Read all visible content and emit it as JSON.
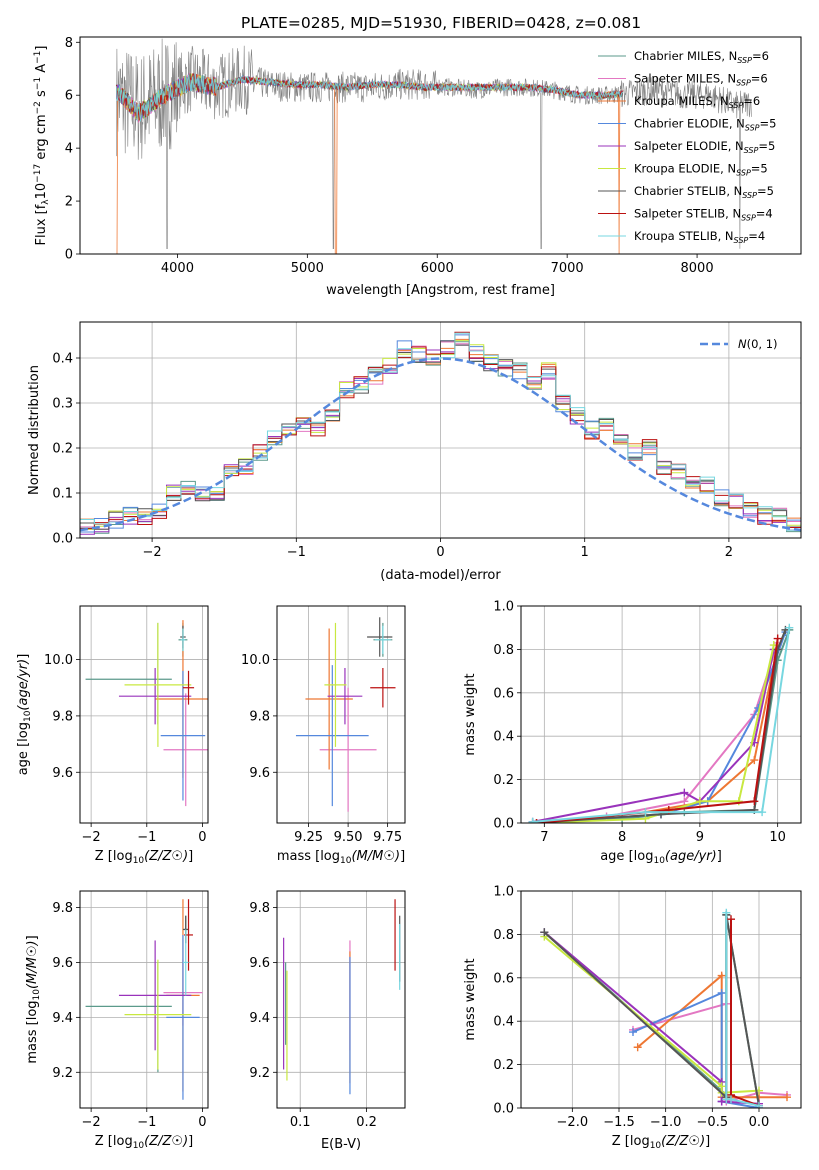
{
  "title": "PLATE=0285, MJD=51930, FIBERID=0428, z=0.081",
  "models": [
    {
      "name": "Chabrier MILES, N_SSP=6",
      "label_main": "Chabrier MILES, N",
      "label_sub": "SSP",
      "label_tail": "=6",
      "color": "#5b9a8b"
    },
    {
      "name": "Salpeter MILES, N_SSP=6",
      "label_main": "Salpeter MILES, N",
      "label_sub": "SSP",
      "label_tail": "=6",
      "color": "#e377c2"
    },
    {
      "name": "Kroupa MILES, N_SSP=6",
      "label_main": "Kroupa MILES, N",
      "label_sub": "SSP",
      "label_tail": "=6",
      "color": "#ee7733"
    },
    {
      "name": "Chabrier ELODIE, N_SSP=5",
      "label_main": "Chabrier ELODIE, N",
      "label_sub": "SSP",
      "label_tail": "=5",
      "color": "#5588dd"
    },
    {
      "name": "Salpeter ELODIE, N_SSP=5",
      "label_main": "Salpeter ELODIE, N",
      "label_sub": "SSP",
      "label_tail": "=5",
      "color": "#9933bb"
    },
    {
      "name": "Kroupa ELODIE, N_SSP=5",
      "label_main": "Kroupa ELODIE, N",
      "label_sub": "SSP",
      "label_tail": "=5",
      "color": "#c8e840"
    },
    {
      "name": "Chabrier STELIB, N_SSP=5",
      "label_main": "Chabrier STELIB, N",
      "label_sub": "SSP",
      "label_tail": "=5",
      "color": "#555555"
    },
    {
      "name": "Salpeter STELIB, N_SSP=4",
      "label_main": "Salpeter STELIB, N",
      "label_sub": "SSP",
      "label_tail": "=4",
      "color": "#bb1111"
    },
    {
      "name": "Kroupa STELIB, N_SSP=4",
      "label_main": "Kroupa STELIB, N",
      "label_sub": "SSP",
      "label_tail": "=4",
      "color": "#77d7e0"
    }
  ],
  "chart_data": [
    {
      "id": "spectrum",
      "type": "line",
      "xlabel": "wavelength [Angstrom, rest frame]",
      "ylabel": "Flux [f_λ 10^-17 erg cm^-2 s^-1 A^-1]",
      "xlim": [
        3250,
        8800
      ],
      "ylim": [
        0,
        8.2
      ],
      "xticks": [
        4000,
        5000,
        6000,
        7000,
        8000
      ],
      "yticks": [
        0,
        2,
        4,
        6,
        8
      ],
      "grid": false,
      "legend": "upper right",
      "data_envelope": {
        "x": [
          3550,
          3700,
          3900,
          4100,
          4300,
          4500,
          4700,
          4900,
          5100,
          5300,
          5500,
          5700,
          5900,
          6100,
          6300,
          6500,
          6700,
          6900,
          7100,
          7300,
          7500,
          7700,
          7900,
          8100,
          8300,
          8500
        ],
        "y": [
          5.9,
          5.5,
          6.0,
          6.6,
          6.3,
          6.6,
          6.4,
          6.3,
          6.3,
          6.3,
          6.3,
          6.4,
          6.4,
          6.3,
          6.2,
          6.3,
          6.3,
          6.2,
          6.0,
          6.0,
          6.1,
          6.2,
          6.0,
          6.0,
          5.6,
          5.8
        ]
      },
      "model_envelope": {
        "x": [
          3550,
          3700,
          3900,
          4100,
          4300,
          4500,
          4700,
          4900,
          5100,
          5300,
          5500,
          5700,
          5900,
          6100,
          6300,
          6500,
          6700,
          6900,
          7100,
          7300,
          7500
        ],
        "y": [
          6.1,
          5.3,
          6.0,
          6.5,
          6.3,
          6.6,
          6.5,
          6.4,
          6.4,
          6.3,
          6.4,
          6.4,
          6.3,
          6.3,
          6.3,
          6.3,
          6.3,
          6.2,
          6.0,
          6.0,
          6.1
        ]
      }
    },
    {
      "id": "residuals",
      "type": "histogram",
      "xlabel": "(data-model)/error",
      "ylabel": "Normed distribution",
      "xlim": [
        -2.5,
        2.5
      ],
      "ylim": [
        0,
        0.48
      ],
      "xticks": [
        -2,
        -1,
        0,
        1,
        2
      ],
      "yticks": [
        0.0,
        0.1,
        0.2,
        0.3,
        0.4
      ],
      "grid": true,
      "legend": "upper right",
      "reference_curve": {
        "name": "N(0,1)",
        "type": "normal",
        "mean": 0,
        "sigma": 1,
        "style": "dashed",
        "color": "#5588dd"
      },
      "bin_width": 0.1,
      "bin_start": -2.5,
      "heights": [
        0.025,
        0.03,
        0.04,
        0.05,
        0.045,
        0.06,
        0.1,
        0.11,
        0.1,
        0.1,
        0.15,
        0.16,
        0.19,
        0.22,
        0.24,
        0.25,
        0.24,
        0.27,
        0.33,
        0.34,
        0.36,
        0.38,
        0.42,
        0.41,
        0.4,
        0.42,
        0.44,
        0.41,
        0.39,
        0.38,
        0.37,
        0.34,
        0.37,
        0.3,
        0.27,
        0.24,
        0.25,
        0.22,
        0.19,
        0.2,
        0.16,
        0.15,
        0.13,
        0.12,
        0.09,
        0.08,
        0.06,
        0.05,
        0.05,
        0.03
      ]
    },
    {
      "id": "age_vs_Z",
      "type": "errorbar",
      "xlabel": "Z [log10(Z/Z☉)]",
      "ylabel": "age [log10(age/yr)]",
      "xlim": [
        -2.2,
        0.1
      ],
      "ylim": [
        9.42,
        10.19
      ],
      "xticks": [
        -2,
        -1,
        0
      ],
      "yticks": [
        9.6,
        9.8,
        10.0
      ],
      "grid": true,
      "points": [
        {
          "x": -0.35,
          "y": 10.07,
          "xerr": 0.08,
          "yerr": 0.06,
          "model": 0
        },
        {
          "x": -0.3,
          "y": 9.68,
          "xerr": 0.4,
          "yerr": 0.2,
          "model": 1
        },
        {
          "x": -0.35,
          "y": 9.86,
          "xerr": 0.5,
          "yerr": 0.28,
          "model": 2
        },
        {
          "x": -0.35,
          "y": 9.73,
          "xerr": 0.4,
          "yerr": 0.23,
          "model": 3
        },
        {
          "x": -0.85,
          "y": 9.87,
          "xerr": 0.65,
          "yerr": 0.1,
          "model": 4
        },
        {
          "x": -0.8,
          "y": 9.91,
          "xerr": 0.6,
          "yerr": 0.22,
          "model": 5
        },
        {
          "x": -0.35,
          "y": 10.08,
          "xerr": 0.05,
          "yerr": 0.04,
          "model": 6
        },
        {
          "x": -0.25,
          "y": 9.9,
          "xerr": 0.1,
          "yerr": 0.06,
          "model": 7
        },
        {
          "x": -0.35,
          "y": 10.07,
          "xerr": 0.04,
          "yerr": 0.04,
          "model": 8
        }
      ],
      "extra_bar": {
        "x": -0.8,
        "y": 9.93,
        "x0": -2.1,
        "x1": -0.55,
        "y0": 9.77,
        "y1": 10.13,
        "model": 0
      }
    },
    {
      "id": "age_vs_mass",
      "type": "errorbar",
      "xlabel": "mass [log10(M/M☉)]",
      "ylabel": "",
      "xlim": [
        9.05,
        9.86
      ],
      "ylim": [
        9.42,
        10.19
      ],
      "xticks": [
        9.25,
        9.5,
        9.75
      ],
      "yticks": [
        9.6,
        9.8,
        10.0
      ],
      "grid": true,
      "points": [
        {
          "x": 9.72,
          "y": 10.07,
          "xerr": 0.06,
          "yerr": 0.06,
          "model": 0
        },
        {
          "x": 9.5,
          "y": 9.68,
          "xerr": 0.18,
          "yerr": 0.22,
          "model": 1
        },
        {
          "x": 9.38,
          "y": 9.86,
          "xerr": 0.15,
          "yerr": 0.25,
          "model": 2
        },
        {
          "x": 9.4,
          "y": 9.73,
          "xerr": 0.23,
          "yerr": 0.25,
          "model": 3
        },
        {
          "x": 9.48,
          "y": 9.87,
          "xerr": 0.11,
          "yerr": 0.1,
          "model": 4
        },
        {
          "x": 9.42,
          "y": 9.91,
          "xerr": 0.07,
          "yerr": 0.22,
          "model": 5
        },
        {
          "x": 9.7,
          "y": 10.08,
          "xerr": 0.08,
          "yerr": 0.07,
          "model": 6
        },
        {
          "x": 9.72,
          "y": 9.9,
          "xerr": 0.08,
          "yerr": 0.07,
          "model": 7
        },
        {
          "x": 9.72,
          "y": 10.07,
          "xerr": 0.05,
          "yerr": 0.05,
          "model": 8
        }
      ]
    },
    {
      "id": "weight_vs_age",
      "type": "line",
      "xlabel": "age [log10(age/yr)]",
      "ylabel": "mass weight",
      "xlim": [
        6.7,
        10.3
      ],
      "ylim": [
        0,
        1.0
      ],
      "xticks": [
        7,
        8,
        9,
        10
      ],
      "yticks": [
        0.0,
        0.2,
        0.4,
        0.6,
        0.8,
        1.0
      ],
      "grid": true,
      "series": [
        {
          "model": 0,
          "x": [
            6.85,
            8.0,
            8.8,
            9.7,
            10.0,
            10.15
          ],
          "y": [
            0.005,
            0.02,
            0.05,
            0.06,
            0.75,
            0.89
          ]
        },
        {
          "model": 1,
          "x": [
            6.9,
            7.8,
            8.8,
            9.7,
            10.0
          ],
          "y": [
            0.0,
            0.03,
            0.1,
            0.5,
            0.83
          ]
        },
        {
          "model": 2,
          "x": [
            6.85,
            8.3,
            9.1,
            9.7,
            10.0
          ],
          "y": [
            0.0,
            0.05,
            0.1,
            0.29,
            0.82
          ]
        },
        {
          "model": 3,
          "x": [
            6.9,
            8.5,
            9.1,
            9.75,
            10.1
          ],
          "y": [
            0.0,
            0.04,
            0.1,
            0.53,
            0.88
          ]
        },
        {
          "model": 4,
          "x": [
            6.85,
            8.8,
            9.0,
            9.7,
            9.95
          ],
          "y": [
            0.005,
            0.14,
            0.1,
            0.37,
            0.8
          ]
        },
        {
          "model": 5,
          "x": [
            6.9,
            8.3,
            9.0,
            9.5,
            9.95
          ],
          "y": [
            0.0,
            0.02,
            0.1,
            0.1,
            0.82
          ]
        },
        {
          "model": 6,
          "x": [
            6.85,
            8.5,
            9.7,
            10.0,
            10.1
          ],
          "y": [
            0.0,
            0.04,
            0.06,
            0.8,
            0.89
          ]
        },
        {
          "model": 7,
          "x": [
            6.9,
            8.6,
            9.7,
            10.0
          ],
          "y": [
            0.0,
            0.06,
            0.1,
            0.85
          ]
        },
        {
          "model": 8,
          "x": [
            6.85,
            8.3,
            9.8,
            10.15
          ],
          "y": [
            0.005,
            0.05,
            0.05,
            0.9
          ]
        }
      ]
    },
    {
      "id": "mass_vs_Z",
      "type": "errorbar",
      "xlabel": "Z [log10(Z/Z☉)]",
      "ylabel": "mass [log10(M/M☉)]",
      "xlim": [
        -2.2,
        0.1
      ],
      "ylim": [
        9.07,
        9.86
      ],
      "xticks": [
        -2,
        -1,
        0
      ],
      "yticks": [
        9.2,
        9.4,
        9.6,
        9.8
      ],
      "grid": true,
      "points": [
        {
          "x": -0.3,
          "y": 9.72,
          "xerr": 0.05,
          "yerr": 0.05,
          "model": 0
        },
        {
          "x": -0.35,
          "y": 9.49,
          "xerr": 0.35,
          "yerr": 0.12,
          "model": 1
        },
        {
          "x": -0.35,
          "y": 9.48,
          "xerr": 0.3,
          "yerr": 0.35,
          "model": 2
        },
        {
          "x": -0.35,
          "y": 9.4,
          "xerr": 0.3,
          "yerr": 0.3,
          "model": 3
        },
        {
          "x": -0.85,
          "y": 9.48,
          "xerr": 0.65,
          "yerr": 0.2,
          "model": 4
        },
        {
          "x": -0.8,
          "y": 9.41,
          "xerr": 0.6,
          "yerr": 0.2,
          "model": 5
        },
        {
          "x": -0.3,
          "y": 9.72,
          "xerr": 0.05,
          "yerr": 0.05,
          "model": 6
        },
        {
          "x": -0.25,
          "y": 9.7,
          "xerr": 0.08,
          "yerr": 0.13,
          "model": 7
        },
        {
          "x": -0.3,
          "y": 9.6,
          "xerr": 0.05,
          "yerr": 0.12,
          "model": 8
        }
      ],
      "extra_bar": {
        "x": -0.8,
        "y": 9.44,
        "x0": -2.1,
        "x1": -0.55,
        "y0": 9.2,
        "y1": 9.6,
        "model": 0
      }
    },
    {
      "id": "mass_vs_EBV",
      "type": "errorbar",
      "xlabel": "E(B-V)",
      "ylabel": "",
      "xlim": [
        0.065,
        0.258
      ],
      "ylim": [
        9.07,
        9.86
      ],
      "xticks": [
        0.1,
        0.2
      ],
      "yticks": [
        9.2,
        9.4,
        9.6,
        9.8
      ],
      "grid": true,
      "points": [
        {
          "x": 0.078,
          "y": 9.45,
          "xerr": 0,
          "yerr": 0.15,
          "model": 0
        },
        {
          "x": 0.175,
          "y": 9.48,
          "xerr": 0,
          "yerr": 0.2,
          "model": 1
        },
        {
          "x": 0.175,
          "y": 9.4,
          "xerr": 0,
          "yerr": 0.24,
          "model": 2
        },
        {
          "x": 0.175,
          "y": 9.37,
          "xerr": 0,
          "yerr": 0.25,
          "model": 3
        },
        {
          "x": 0.075,
          "y": 9.45,
          "xerr": 0,
          "yerr": 0.24,
          "model": 4
        },
        {
          "x": 0.08,
          "y": 9.37,
          "xerr": 0,
          "yerr": 0.2,
          "model": 5
        },
        {
          "x": 0.25,
          "y": 9.65,
          "xerr": 0,
          "yerr": 0.12,
          "model": 6
        },
        {
          "x": 0.243,
          "y": 9.7,
          "xerr": 0,
          "yerr": 0.13,
          "model": 7
        },
        {
          "x": 0.25,
          "y": 9.62,
          "xerr": 0,
          "yerr": 0.12,
          "model": 8
        }
      ]
    },
    {
      "id": "weight_vs_Z",
      "type": "line",
      "xlabel": "Z [log10(Z/Z☉)]",
      "ylabel": "mass weight",
      "xlim": [
        -2.55,
        0.45
      ],
      "ylim": [
        0,
        1.0
      ],
      "xticks": [
        -2.0,
        -1.5,
        -1.0,
        -0.5,
        0.0
      ],
      "yticks": [
        0.0,
        0.2,
        0.4,
        0.6,
        0.8,
        1.0
      ],
      "grid": true,
      "series": [
        {
          "model": 0,
          "x": [
            -2.3,
            -0.35,
            -0.35,
            0.0
          ],
          "y": [
            0.81,
            0.06,
            0.89,
            0.01
          ]
        },
        {
          "model": 1,
          "x": [
            -1.35,
            -0.35,
            -0.35,
            0.0,
            0.3
          ],
          "y": [
            0.36,
            0.48,
            0.03,
            0.07,
            0.06
          ]
        },
        {
          "model": 2,
          "x": [
            -1.3,
            -0.4,
            -0.4,
            0.0,
            0.3
          ],
          "y": [
            0.28,
            0.61,
            0.05,
            0.05,
            0.05
          ]
        },
        {
          "model": 3,
          "x": [
            -1.35,
            -0.4,
            -0.4,
            0.0
          ],
          "y": [
            0.35,
            0.53,
            0.03,
            0.0
          ]
        },
        {
          "model": 4,
          "x": [
            -2.3,
            -0.4,
            -0.4,
            0.0
          ],
          "y": [
            0.81,
            0.12,
            0.03,
            0.02
          ]
        },
        {
          "model": 5,
          "x": [
            -2.3,
            -0.4,
            -0.4,
            0.0
          ],
          "y": [
            0.79,
            0.1,
            0.07,
            0.08
          ]
        },
        {
          "model": 6,
          "x": [
            -2.3,
            -0.35,
            -0.35,
            0.0
          ],
          "y": [
            0.81,
            0.05,
            0.89,
            0.01
          ]
        },
        {
          "model": 7,
          "x": [
            -0.3,
            -0.3,
            0.0
          ],
          "y": [
            0.87,
            0.06,
            0.01
          ]
        },
        {
          "model": 8,
          "x": [
            -0.35,
            -0.35,
            -0.3,
            0.0
          ],
          "y": [
            0.9,
            0.04,
            0.04,
            0.01
          ]
        }
      ]
    }
  ]
}
